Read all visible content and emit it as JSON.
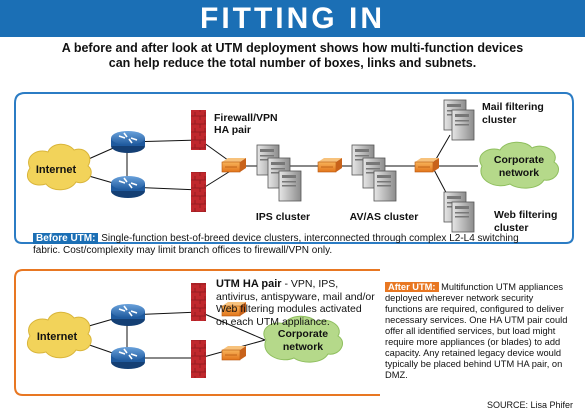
{
  "title": "FITTING IN",
  "subtitle_line1": "A before and after look at UTM deployment shows how multi-function devices",
  "subtitle_line2": "can help reduce the total number of boxes, links and subnets.",
  "before": {
    "internet": "Internet",
    "firewall_line1": "Firewall/VPN",
    "firewall_line2": "HA pair",
    "ips": "IPS cluster",
    "avas": "AV/AS cluster",
    "mail_line1": "Mail filtering",
    "mail_line2": "cluster",
    "corp_line1": "Corporate",
    "corp_line2": "network",
    "web_line1": "Web filtering",
    "web_line2": "cluster",
    "caption_tag": "Before UTM:",
    "caption_text": " Single-function best-of-breed device clusters, interconnected through complex L2-L4 switching fabric. Cost/complexity may limit branch offices to firewall/VPN only."
  },
  "after": {
    "internet": "Internet",
    "corp_line1": "Corporate",
    "corp_line2": "network",
    "utm_bold": "UTM HA pair",
    "utm_text": " - VPN, IPS, antivirus, antispyware, mail and/or Web filtering modules activated on each UTM appliance.",
    "caption_tag": "After UTM:",
    "caption_text": " Multifunction UTM appliances deployed wherever network security functions are required, configured to deliver necessary services. One HA UTM pair could offer all identified services, but load might require more appliances (or blades) to add capacity. Any retained legacy device would typically be placed behind UTM HA pair, on DMZ."
  },
  "source": "SOURCE: Lisa Phifer",
  "colors": {
    "banner": "#1b6fb5",
    "before_border": "#2b7cc4",
    "after_border": "#e87722",
    "cloud": "#f2d35a",
    "green_cloud": "#b5d98a",
    "router": "#2b6fb8",
    "firewall": "#c0282d",
    "appliance": "#f08a1c"
  }
}
